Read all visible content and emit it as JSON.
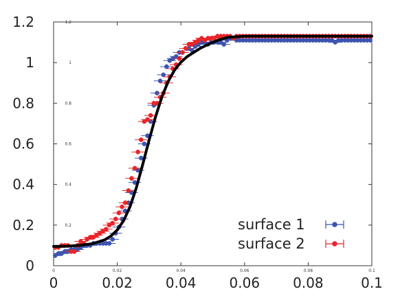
{
  "chart_data": {
    "type": "scatter",
    "title": "",
    "xlabel": "",
    "ylabel": "",
    "xlim": [
      0,
      0.1
    ],
    "ylim": [
      0,
      1.2
    ],
    "grid": false,
    "legend_position": "bottom-right",
    "x_ticks": [
      "0",
      "0.02",
      "0.04",
      "0.06",
      "0.08",
      "0.1"
    ],
    "y_ticks": [
      "0",
      "0.2",
      "0.4",
      "0.6",
      "0.8",
      "1",
      "1.2"
    ],
    "x_ticks_small": [
      "0",
      "0.02",
      "0.04",
      "0.06",
      "0.08",
      "0.1"
    ],
    "y_ticks_small": [
      "0.2",
      "0.4",
      "0.6",
      "0.8",
      "1",
      "1.2"
    ],
    "series": [
      {
        "name": "surface  1",
        "color": "#3d55b0",
        "marker": "circle-with-xerror",
        "x": [
          0.0005,
          0.0015,
          0.0025,
          0.0035,
          0.0045,
          0.0055,
          0.0065,
          0.0075,
          0.0085,
          0.0095,
          0.0105,
          0.0115,
          0.0125,
          0.0135,
          0.0145,
          0.0155,
          0.0165,
          0.0175,
          0.0185,
          0.0195,
          0.0205,
          0.0215,
          0.0225,
          0.0235,
          0.0245,
          0.0255,
          0.0265,
          0.0275,
          0.0285,
          0.0295,
          0.0305,
          0.0315,
          0.0325,
          0.0335,
          0.0345,
          0.0355,
          0.0365,
          0.0375,
          0.0385,
          0.0395,
          0.0405,
          0.0415,
          0.0425,
          0.0435,
          0.0445,
          0.0455,
          0.0465,
          0.0475,
          0.0485,
          0.0495,
          0.0505,
          0.0515,
          0.0525,
          0.0535,
          0.0545,
          0.0555,
          0.0565,
          0.0575,
          0.0585,
          0.0595,
          0.0605,
          0.0615,
          0.0625,
          0.0635,
          0.0645,
          0.0655,
          0.0665,
          0.0675,
          0.0685,
          0.0695,
          0.0705,
          0.0715,
          0.0725,
          0.0735,
          0.0745,
          0.0755,
          0.0765,
          0.0775,
          0.0785,
          0.0795,
          0.0805,
          0.0815,
          0.0825,
          0.0835,
          0.0845,
          0.0855,
          0.0865,
          0.0875,
          0.0885,
          0.0895,
          0.0905,
          0.0915,
          0.0925,
          0.0935,
          0.0945,
          0.0955,
          0.0965,
          0.0975,
          0.0985,
          0.0995
        ],
        "y": [
          0.05,
          0.06,
          0.06,
          0.07,
          0.07,
          0.08,
          0.08,
          0.08,
          0.09,
          0.1,
          0.1,
          0.1,
          0.11,
          0.11,
          0.11,
          0.11,
          0.11,
          0.11,
          0.13,
          0.16,
          0.19,
          0.23,
          0.27,
          0.31,
          0.36,
          0.41,
          0.47,
          0.53,
          0.6,
          0.64,
          0.71,
          0.79,
          0.85,
          0.91,
          0.94,
          0.98,
          1.01,
          1.02,
          1.03,
          1.05,
          1.05,
          1.07,
          1.07,
          1.06,
          1.08,
          1.09,
          1.1,
          1.1,
          1.09,
          1.1,
          1.1,
          1.1,
          1.1,
          1.09,
          1.11,
          1.12,
          1.12,
          1.11,
          1.11,
          1.11,
          1.11,
          1.11,
          1.11,
          1.11,
          1.11,
          1.11,
          1.11,
          1.11,
          1.11,
          1.11,
          1.11,
          1.11,
          1.11,
          1.11,
          1.11,
          1.11,
          1.11,
          1.11,
          1.11,
          1.11,
          1.11,
          1.11,
          1.11,
          1.11,
          1.11,
          1.11,
          1.11,
          1.11,
          1.1,
          1.11,
          1.11,
          1.11,
          1.11,
          1.11,
          1.11,
          1.11,
          1.11,
          1.11,
          1.11,
          1.11
        ],
        "xerr": 0.002,
        "yerr": 0.012
      },
      {
        "name": "surface  2",
        "color": "#e8262a",
        "marker": "circle-with-xerror",
        "x": [
          0.0005,
          0.0015,
          0.0025,
          0.0035,
          0.0045,
          0.0055,
          0.0065,
          0.0075,
          0.0085,
          0.0095,
          0.0105,
          0.0115,
          0.0125,
          0.0135,
          0.0145,
          0.0155,
          0.0165,
          0.0175,
          0.0185,
          0.0195,
          0.0205,
          0.0215,
          0.0225,
          0.0235,
          0.0245,
          0.0255,
          0.0265,
          0.0275,
          0.0285,
          0.0295,
          0.0305,
          0.0315,
          0.0325,
          0.0335,
          0.0345,
          0.0355,
          0.0365,
          0.0375,
          0.0385,
          0.0395,
          0.0405,
          0.0415,
          0.0425,
          0.0435,
          0.0445,
          0.0455,
          0.0465,
          0.0475,
          0.0485,
          0.0495,
          0.0505,
          0.0515,
          0.0525,
          0.0535,
          0.0545,
          0.0555,
          0.0565,
          0.0575,
          0.0585,
          0.0595,
          0.0605,
          0.0615,
          0.0625,
          0.0635,
          0.0645,
          0.0655,
          0.0665,
          0.0675,
          0.0685,
          0.0695,
          0.0705,
          0.0715,
          0.0725,
          0.0735,
          0.0745,
          0.0755,
          0.0765,
          0.0775,
          0.0785,
          0.0795,
          0.0805,
          0.0815,
          0.0825,
          0.0835,
          0.0845,
          0.0855,
          0.0865,
          0.0875,
          0.0885,
          0.0895,
          0.0905,
          0.0915,
          0.0925,
          0.0935,
          0.0945,
          0.0955,
          0.0965,
          0.0975,
          0.0985,
          0.0995
        ],
        "y": [
          0.09,
          0.09,
          0.1,
          0.1,
          0.1,
          0.07,
          0.07,
          0.1,
          0.12,
          0.11,
          0.13,
          0.14,
          0.14,
          0.15,
          0.16,
          0.17,
          0.18,
          0.2,
          0.21,
          0.23,
          0.26,
          0.29,
          0.31,
          0.37,
          0.43,
          0.48,
          0.56,
          0.62,
          0.71,
          0.72,
          0.74,
          0.8,
          0.8,
          0.83,
          0.85,
          0.9,
          0.93,
          0.97,
          0.99,
          1.02,
          1.05,
          1.07,
          1.09,
          1.09,
          1.1,
          1.11,
          1.12,
          1.11,
          1.12,
          1.12,
          1.12,
          1.13,
          1.13,
          1.13,
          1.13,
          1.13,
          1.12,
          1.13,
          1.13,
          1.13,
          1.13,
          1.13,
          1.13,
          1.13,
          1.13,
          1.13,
          1.13,
          1.13,
          1.13,
          1.13,
          1.13,
          1.13,
          1.13,
          1.13,
          1.13,
          1.13,
          1.13,
          1.13,
          1.13,
          1.13,
          1.13,
          1.13,
          1.13,
          1.13,
          1.13,
          1.13,
          1.13,
          1.13,
          1.13,
          1.13,
          1.13,
          1.13,
          1.13,
          1.13,
          1.13,
          1.13,
          1.13,
          1.13,
          1.13,
          1.13
        ],
        "xerr": 0.002,
        "yerr": 0.012
      }
    ],
    "fit_curve": {
      "color": "#000000",
      "x": [
        0,
        0.004,
        0.008,
        0.012,
        0.016,
        0.018,
        0.02,
        0.022,
        0.024,
        0.026,
        0.028,
        0.03,
        0.032,
        0.034,
        0.036,
        0.038,
        0.04,
        0.042,
        0.044,
        0.046,
        0.048,
        0.05,
        0.052,
        0.055,
        0.06,
        0.07,
        0.08,
        0.09,
        0.1
      ],
      "y": [
        0.095,
        0.096,
        0.1,
        0.108,
        0.127,
        0.146,
        0.176,
        0.222,
        0.29,
        0.384,
        0.498,
        0.618,
        0.732,
        0.83,
        0.907,
        0.963,
        1.002,
        1.03,
        1.05,
        1.07,
        1.085,
        1.1,
        1.112,
        1.125,
        1.13,
        1.13,
        1.13,
        1.13,
        1.13
      ]
    }
  }
}
